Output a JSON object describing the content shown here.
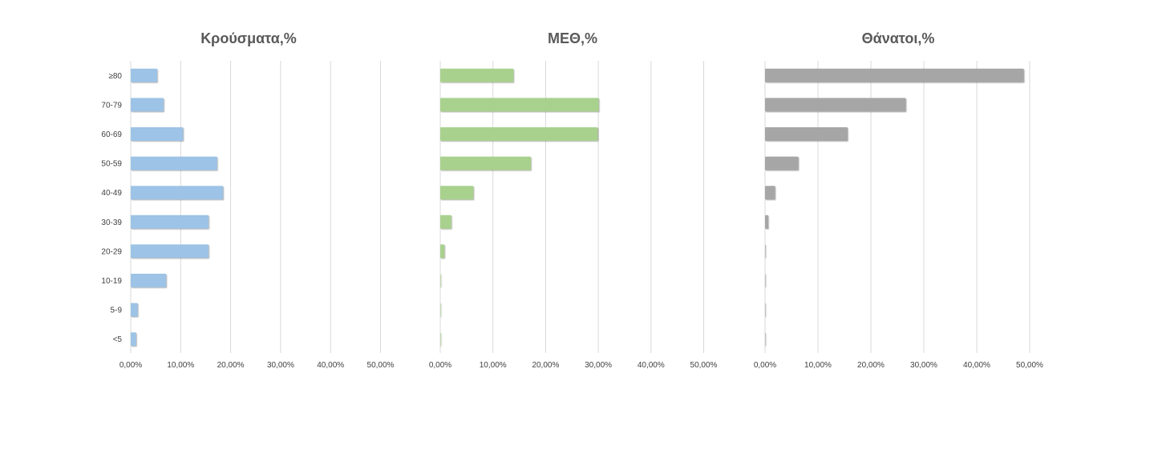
{
  "chart_data": [
    {
      "type": "bar",
      "orientation": "horizontal",
      "title": "Κρούσματα,%",
      "categories": [
        "≥80",
        "70-79",
        "60-69",
        "50-59",
        "40-49",
        "30-39",
        "20-29",
        "10-19",
        "5-9",
        "<5"
      ],
      "values": [
        5.3,
        6.6,
        10.5,
        17.3,
        18.5,
        15.6,
        15.6,
        7.1,
        1.4,
        1.1
      ],
      "xlim": [
        0,
        50
      ],
      "xticks": [
        "0,00%",
        "10,00%",
        "20,00%",
        "30,00%",
        "40,00%",
        "50,00%"
      ],
      "show_category_labels": true,
      "grid": true,
      "color": "#9dc3e6"
    },
    {
      "type": "bar",
      "orientation": "horizontal",
      "title": "ΜΕΘ,%",
      "categories": [
        "≥80",
        "70-79",
        "60-69",
        "50-59",
        "40-49",
        "30-39",
        "20-29",
        "10-19",
        "5-9",
        "<5"
      ],
      "values": [
        13.9,
        30.1,
        29.9,
        17.2,
        6.3,
        2.1,
        0.8,
        0.1,
        0.0,
        0.1
      ],
      "xlim": [
        0,
        50
      ],
      "xticks": [
        "0,00%",
        "10,00%",
        "20,00%",
        "30,00%",
        "40,00%",
        "50,00%"
      ],
      "show_category_labels": false,
      "grid": true,
      "color": "#a9d18e"
    },
    {
      "type": "bar",
      "orientation": "horizontal",
      "title": "Θάνατοι,%",
      "categories": [
        "≥80",
        "70-79",
        "60-69",
        "50-59",
        "40-49",
        "30-39",
        "20-29",
        "10-19",
        "5-9",
        "<5"
      ],
      "values": [
        48.9,
        26.6,
        15.6,
        6.3,
        1.9,
        0.6,
        0.1,
        0.0,
        0.0,
        0.0
      ],
      "xlim": [
        0,
        50
      ],
      "xticks": [
        "0,00%",
        "10,00%",
        "20,00%",
        "30,00%",
        "40,00%",
        "50,00%"
      ],
      "show_category_labels": false,
      "grid": true,
      "color": "#a6a6a6"
    }
  ]
}
